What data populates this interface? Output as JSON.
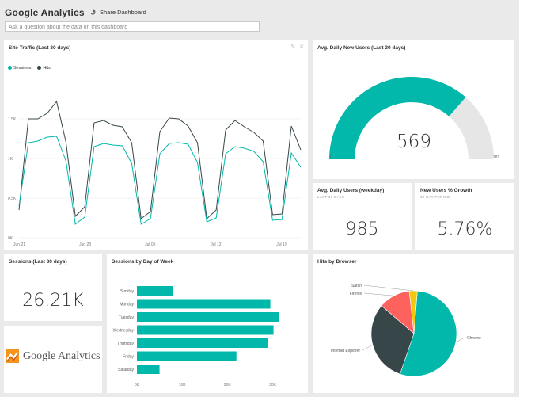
{
  "app": {
    "title": "Google Analytics",
    "share_label": "Share Dashboard",
    "qa_placeholder": "Ask a question about the data on this dashboard"
  },
  "tiles": {
    "site_traffic": {
      "title": "Site Traffic (Last 30 days)"
    },
    "new_users": {
      "title": "Avg. Daily New Users (Last 30 days)",
      "value": "569",
      "min_label": "0",
      "max_label": "781"
    },
    "weekday_users": {
      "title": "Avg. Daily Users (weekday)",
      "subtitle": "LAST 30 DAYS",
      "value": "985"
    },
    "growth": {
      "title": "New Users % Growth",
      "subtitle": "30 DAY PERIOD",
      "value": "5.76%"
    },
    "sessions": {
      "title": "Sessions (Last 30 days)",
      "value": "26.21K"
    },
    "day_of_week": {
      "title": "Sessions by Day of Week"
    },
    "browser": {
      "title": "Hits by Browser"
    },
    "logo": {
      "text": "Google Analytics"
    }
  },
  "colors": {
    "teal": "#01b8aa",
    "dark": "#374649",
    "red": "#fd625e",
    "yellow": "#f2c80f",
    "gauge_bg": "#e6e6e6"
  },
  "chart_data": [
    {
      "type": "line",
      "title": "Site Traffic (Last 30 days)",
      "x_ticks": [
        "Jun 21",
        "Jun 28",
        "Jul 05",
        "Jul 12",
        "Jul 19"
      ],
      "y_ticks": [
        "0K",
        "0.5K",
        "1K",
        "1.5K"
      ],
      "ylim": [
        0,
        2000
      ],
      "legend": "top-left",
      "series": [
        {
          "name": "Sessions",
          "color": "#01b8aa",
          "values": [
            400,
            1200,
            1220,
            1270,
            1280,
            970,
            170,
            260,
            1150,
            1190,
            1170,
            1160,
            940,
            170,
            240,
            1060,
            1190,
            1200,
            1180,
            950,
            200,
            250,
            1060,
            1150,
            1130,
            1090,
            960,
            220,
            230,
            1070,
            890
          ]
        },
        {
          "name": "Hits",
          "color": "#374649",
          "values": [
            350,
            1500,
            1500,
            1570,
            1720,
            1210,
            270,
            390,
            1450,
            1480,
            1420,
            1400,
            1200,
            240,
            330,
            1340,
            1510,
            1500,
            1410,
            1200,
            240,
            350,
            1360,
            1480,
            1400,
            1330,
            1220,
            290,
            300,
            1410,
            1110
          ]
        }
      ]
    },
    {
      "type": "gauge",
      "title": "Avg. Daily New Users (Last 30 days)",
      "value": 569,
      "min": 0,
      "max": 781
    },
    {
      "type": "bar",
      "title": "Sessions by Day of Week",
      "categories": [
        "Sunday",
        "Monday",
        "Tuesday",
        "Wednesday",
        "Thursday",
        "Friday",
        "Saturday"
      ],
      "values": [
        8000,
        29500,
        31500,
        30200,
        29000,
        22000,
        5000
      ],
      "x_ticks": [
        "0K",
        "10K",
        "20K",
        "30K"
      ],
      "xlim": [
        0,
        35000
      ]
    },
    {
      "type": "pie",
      "title": "Hits by Browser",
      "labels": [
        "Chrome",
        "Internet Explorer",
        "Firefox",
        "Safari"
      ],
      "values": [
        54,
        31,
        12,
        3
      ],
      "colors": [
        "#01b8aa",
        "#374649",
        "#fd625e",
        "#f2c80f"
      ]
    }
  ]
}
